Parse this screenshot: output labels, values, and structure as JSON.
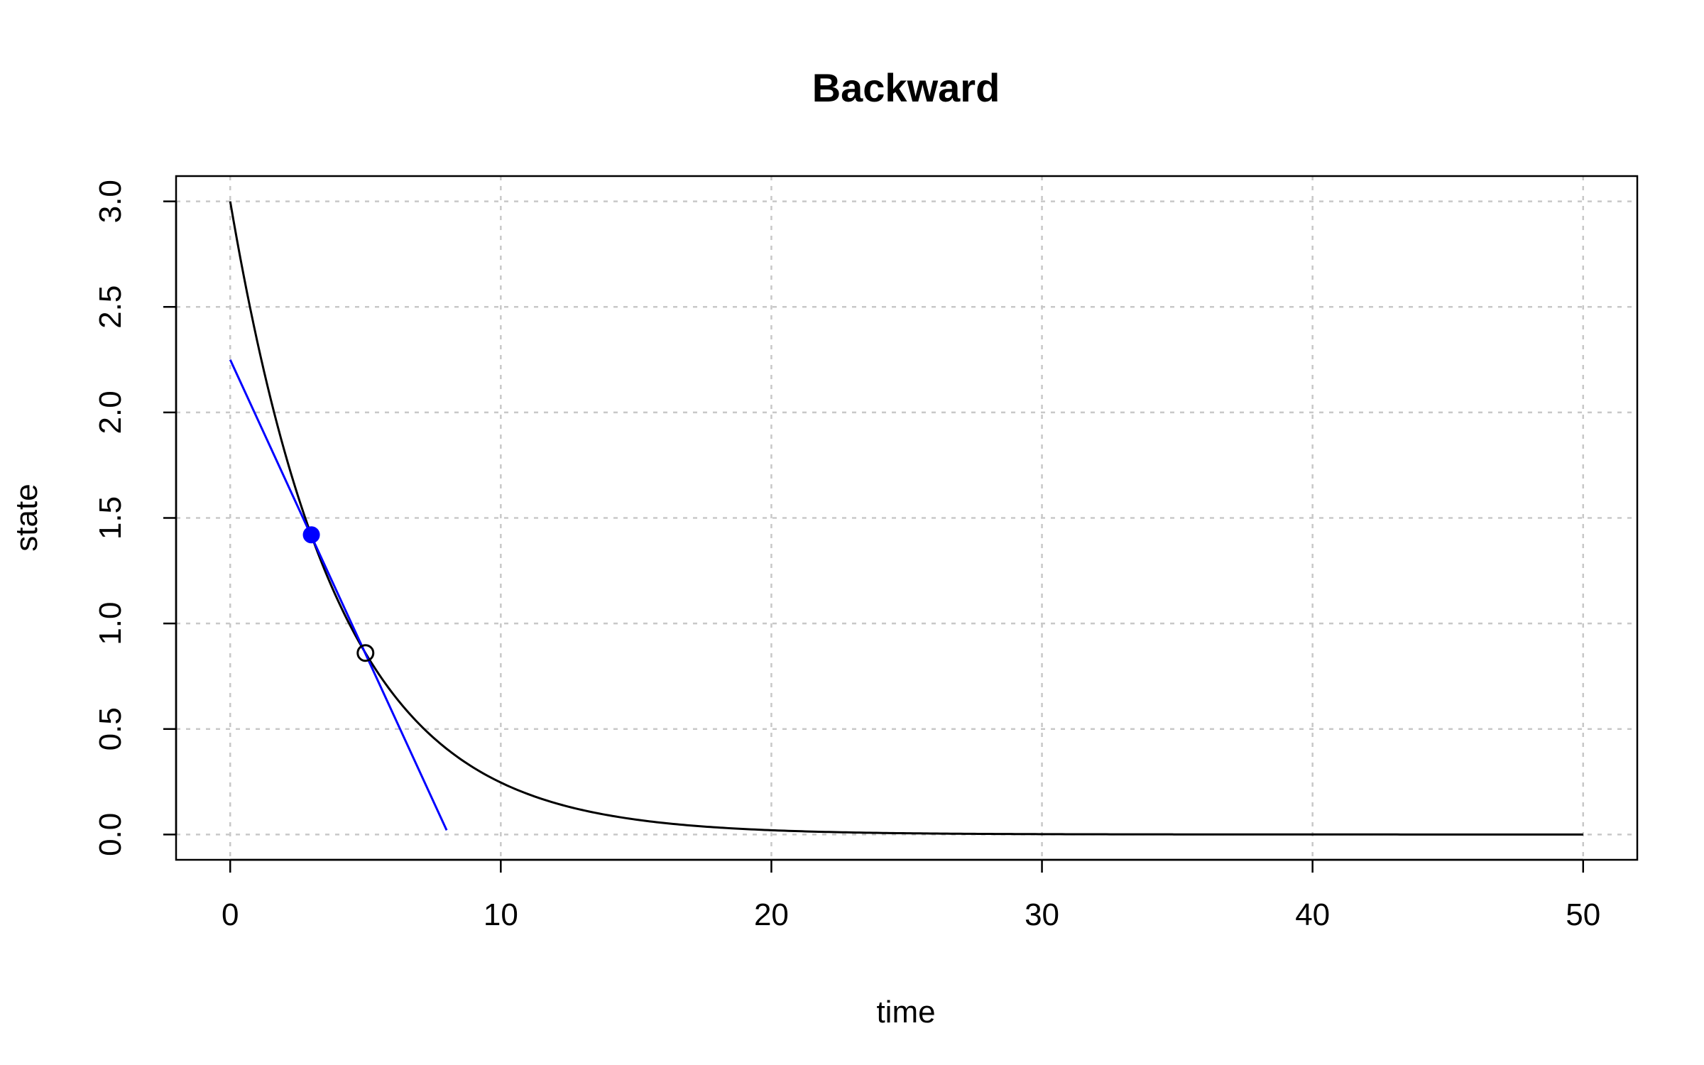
{
  "chart_data": {
    "type": "line",
    "title": "Backward",
    "xlabel": "time",
    "ylabel": "state",
    "xlim": [
      -2,
      52
    ],
    "ylim": [
      -0.12,
      3.12
    ],
    "x_ticks": [
      0,
      10,
      20,
      30,
      40,
      50
    ],
    "x_tick_labels": [
      "0",
      "10",
      "20",
      "30",
      "40",
      "50"
    ],
    "y_ticks": [
      0.0,
      0.5,
      1.0,
      1.5,
      2.0,
      2.5,
      3.0
    ],
    "y_tick_labels": [
      "0.0",
      "0.5",
      "1.0",
      "1.5",
      "2.0",
      "2.5",
      "3.0"
    ],
    "grid": true,
    "series": [
      {
        "color": "#000000",
        "kind": "curve",
        "function": "3*exp(-0.25*t)",
        "x_range": [
          0,
          50
        ]
      },
      {
        "color": "#0000ff",
        "kind": "line",
        "x": [
          0,
          8
        ],
        "y": [
          2.25,
          0.02
        ]
      }
    ],
    "points": [
      {
        "x": 3,
        "y": 1.42,
        "color": "#0000ff",
        "style": "filled"
      },
      {
        "x": 5,
        "y": 0.86,
        "color": "#000000",
        "style": "open"
      }
    ]
  }
}
